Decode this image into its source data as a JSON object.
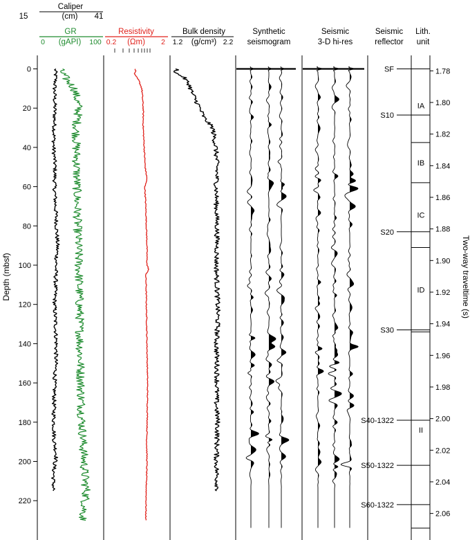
{
  "chart_data": {
    "type": "line",
    "tracks": {
      "caliper": {
        "title": "Caliper",
        "unit": "(cm)",
        "min": "15",
        "max": "41",
        "color": "#000000"
      },
      "gr": {
        "title": "GR",
        "unit": "(gAPI)",
        "min": "0",
        "max": "100",
        "color": "#1e8b2e"
      },
      "resistivity": {
        "title": "Resistivity",
        "unit": "(Ωm)",
        "min": "0.2",
        "max": "2",
        "color": "#e0201a"
      },
      "density": {
        "title": "Bulk density",
        "unit": "(g/cm³)",
        "min": "1.2",
        "max": "2.2",
        "color": "#000000"
      },
      "synthetic": {
        "title_line1": "Synthetic",
        "title_line2": "seismogram"
      },
      "seismic": {
        "title_line1": "Seismic",
        "title_line2": "3-D hi-res"
      },
      "reflector": {
        "title_line1": "Seismic",
        "title_line2": "reflector"
      },
      "lith": {
        "title_line1": "Lith.",
        "title_line2": "unit"
      }
    },
    "depth_axis": {
      "label": "Depth (mbsf)",
      "ticks": [
        0,
        20,
        40,
        60,
        80,
        100,
        120,
        140,
        160,
        180,
        200,
        220
      ],
      "range": [
        -3,
        237
      ]
    },
    "twt_axis": {
      "label": "Two-way traveltime (s)",
      "ticks": [
        "1.78",
        "1.80",
        "1.82",
        "1.84",
        "1.86",
        "1.88",
        "1.90",
        "1.92",
        "1.94",
        "1.96",
        "1.98",
        "2.00",
        "2.02",
        "2.04",
        "2.06"
      ],
      "first_tick_depth": 1,
      "last_tick_depth": 226.5
    },
    "reflectors": [
      {
        "name": "SF",
        "depth": 0
      },
      {
        "name": "S10",
        "depth": 23.5
      },
      {
        "name": "S20",
        "depth": 83
      },
      {
        "name": "S30",
        "depth": 133
      },
      {
        "name": "S40-1322",
        "depth": 179
      },
      {
        "name": "S50-1322",
        "depth": 202
      },
      {
        "name": "S60-1322",
        "depth": 222
      }
    ],
    "lith_units": [
      {
        "name": "IA",
        "top": 0,
        "base": 37.5
      },
      {
        "name": "IB",
        "top": 37.5,
        "base": 58
      },
      {
        "name": "IC",
        "top": 58,
        "base": 91
      },
      {
        "name": "ID",
        "top": 91,
        "base": 134
      },
      {
        "name": "II",
        "top": 134,
        "base": 234
      }
    ],
    "caliper_profile": [
      [
        0,
        21.5
      ],
      [
        5,
        21.6
      ],
      [
        10,
        21.2
      ],
      [
        20,
        21.3
      ],
      [
        30,
        21.1
      ],
      [
        40,
        20.8
      ],
      [
        50,
        21.4
      ],
      [
        60,
        21.2
      ],
      [
        70,
        21.6
      ],
      [
        80,
        22.0
      ],
      [
        90,
        22.4
      ],
      [
        100,
        21.8
      ],
      [
        110,
        21.6
      ],
      [
        120,
        21.2
      ],
      [
        130,
        21.6
      ],
      [
        140,
        21.9
      ],
      [
        150,
        21.7
      ],
      [
        160,
        21.2
      ],
      [
        170,
        21.0
      ],
      [
        180,
        20.9
      ],
      [
        190,
        21.1
      ],
      [
        197,
        22.0
      ],
      [
        203,
        21.0
      ],
      [
        210,
        20.7
      ],
      [
        215,
        20.8
      ]
    ],
    "gr_profile": [
      [
        0,
        32
      ],
      [
        5,
        42
      ],
      [
        10,
        55
      ],
      [
        20,
        62
      ],
      [
        30,
        58
      ],
      [
        40,
        58
      ],
      [
        60,
        59
      ],
      [
        80,
        60
      ],
      [
        100,
        62
      ],
      [
        120,
        63
      ],
      [
        140,
        64
      ],
      [
        160,
        65
      ],
      [
        180,
        67
      ],
      [
        200,
        70
      ],
      [
        210,
        72
      ],
      [
        215,
        74
      ],
      [
        220,
        72
      ],
      [
        230,
        68
      ]
    ],
    "resistivity_profile": [
      [
        0,
        0.61
      ],
      [
        3,
        0.58
      ],
      [
        6,
        0.68
      ],
      [
        10,
        0.76
      ],
      [
        20,
        0.8
      ],
      [
        30,
        0.8
      ],
      [
        40,
        0.83
      ],
      [
        50,
        0.86
      ],
      [
        56,
        0.92
      ],
      [
        60,
        0.85
      ],
      [
        70,
        0.88
      ],
      [
        80,
        0.9
      ],
      [
        90,
        0.92
      ],
      [
        100,
        0.92
      ],
      [
        102,
        0.98
      ],
      [
        105,
        0.88
      ],
      [
        110,
        0.89
      ],
      [
        120,
        0.9
      ],
      [
        140,
        0.92
      ],
      [
        150,
        0.93
      ],
      [
        160,
        0.94
      ],
      [
        180,
        0.93
      ],
      [
        190,
        0.91
      ],
      [
        200,
        0.92
      ],
      [
        210,
        0.9
      ],
      [
        220,
        0.89
      ],
      [
        230,
        0.88
      ]
    ],
    "density_profile": [
      [
        0,
        1.29
      ],
      [
        2,
        1.25
      ],
      [
        4,
        1.38
      ],
      [
        8,
        1.48
      ],
      [
        12,
        1.52
      ],
      [
        18,
        1.62
      ],
      [
        25,
        1.72
      ],
      [
        30,
        1.86
      ],
      [
        40,
        1.91
      ],
      [
        50,
        1.93
      ],
      [
        60,
        1.92
      ],
      [
        70,
        1.92
      ],
      [
        80,
        1.93
      ],
      [
        90,
        1.93
      ],
      [
        100,
        1.92
      ],
      [
        110,
        1.93
      ],
      [
        120,
        1.94
      ],
      [
        130,
        1.94
      ],
      [
        140,
        1.92
      ],
      [
        150,
        1.93
      ],
      [
        160,
        1.93
      ],
      [
        170,
        1.92
      ],
      [
        180,
        1.94
      ],
      [
        190,
        1.93
      ],
      [
        200,
        1.92
      ],
      [
        210,
        1.93
      ],
      [
        215,
        1.94
      ]
    ]
  }
}
